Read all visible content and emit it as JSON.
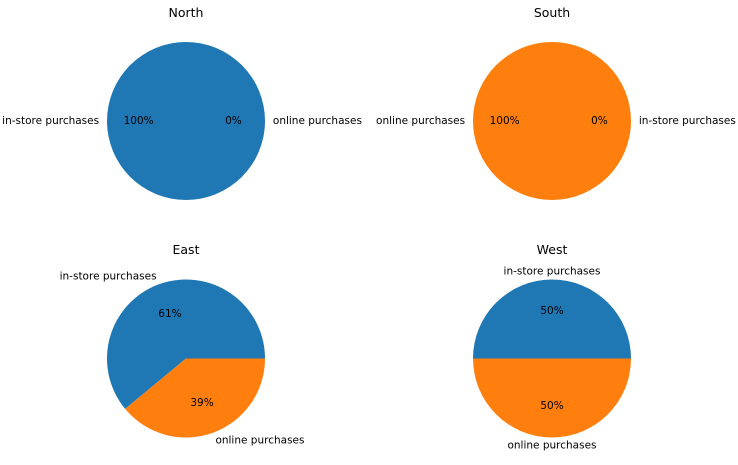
{
  "chart_data": [
    {
      "type": "pie",
      "title": "North",
      "slices": [
        {
          "label": "in-store purchases",
          "value": 100,
          "percent_label": "100%",
          "color": "#1f77b4"
        },
        {
          "label": "online purchases",
          "value": 0,
          "percent_label": "0%",
          "color": "#ff7f0e"
        }
      ]
    },
    {
      "type": "pie",
      "title": "South",
      "slices": [
        {
          "label": "online purchases",
          "value": 100,
          "percent_label": "100%",
          "color": "#ff7f0e"
        },
        {
          "label": "in-store purchases",
          "value": 0,
          "percent_label": "0%",
          "color": "#1f77b4"
        }
      ]
    },
    {
      "type": "pie",
      "title": "East",
      "slices": [
        {
          "label": "in-store purchases",
          "value": 61,
          "percent_label": "61%",
          "color": "#1f77b4"
        },
        {
          "label": "online purchases",
          "value": 39,
          "percent_label": "39%",
          "color": "#ff7f0e"
        }
      ]
    },
    {
      "type": "pie",
      "title": "West",
      "slices": [
        {
          "label": "in-store purchases",
          "value": 50,
          "percent_label": "50%",
          "color": "#1f77b4"
        },
        {
          "label": "online purchases",
          "value": 50,
          "percent_label": "50%",
          "color": "#ff7f0e"
        }
      ]
    }
  ]
}
